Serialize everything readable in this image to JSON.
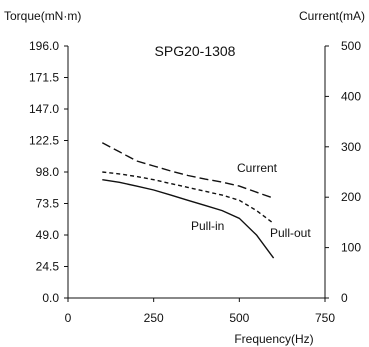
{
  "chart_data": {
    "type": "line",
    "title": "SPG20-1308",
    "xlabel": "Frequency(Hz)",
    "ylabel_left": "Torque(mN·m)",
    "ylabel_right": "Current(mA)",
    "xlim": [
      0,
      750
    ],
    "ylim_left": [
      0,
      196
    ],
    "ylim_right": [
      0,
      500
    ],
    "x_ticks": [
      "0",
      "250",
      "500",
      "750"
    ],
    "y_ticks_left": [
      "0.0",
      "24.5",
      "49.0",
      "73.5",
      "98.0",
      "122.5",
      "147.0",
      "171.5",
      "196.0"
    ],
    "y_ticks_right": [
      "0",
      "100",
      "200",
      "300",
      "400",
      "500"
    ],
    "grid": false,
    "legend": "none (curve labels placed directly on chart)",
    "series": [
      {
        "name": "Current",
        "axis": "right",
        "style": "long-dash",
        "x": [
          100,
          150,
          200,
          250,
          300,
          350,
          400,
          450,
          500,
          550,
          600
        ],
        "y": [
          308,
          290,
          272,
          262,
          252,
          243,
          236,
          230,
          222,
          210,
          198
        ]
      },
      {
        "name": "Pull-out",
        "axis": "left",
        "style": "short-dash",
        "x": [
          100,
          150,
          200,
          250,
          300,
          350,
          400,
          450,
          500,
          550,
          600
        ],
        "y": [
          98,
          96.5,
          94.5,
          92,
          89,
          86,
          83,
          80,
          76,
          68,
          58
        ]
      },
      {
        "name": "Pull-in",
        "axis": "left",
        "style": "solid",
        "x": [
          100,
          150,
          200,
          250,
          300,
          350,
          400,
          450,
          500,
          550,
          600
        ],
        "y": [
          92,
          90,
          87,
          84,
          80,
          76,
          72,
          68,
          62,
          49,
          31
        ]
      }
    ]
  }
}
